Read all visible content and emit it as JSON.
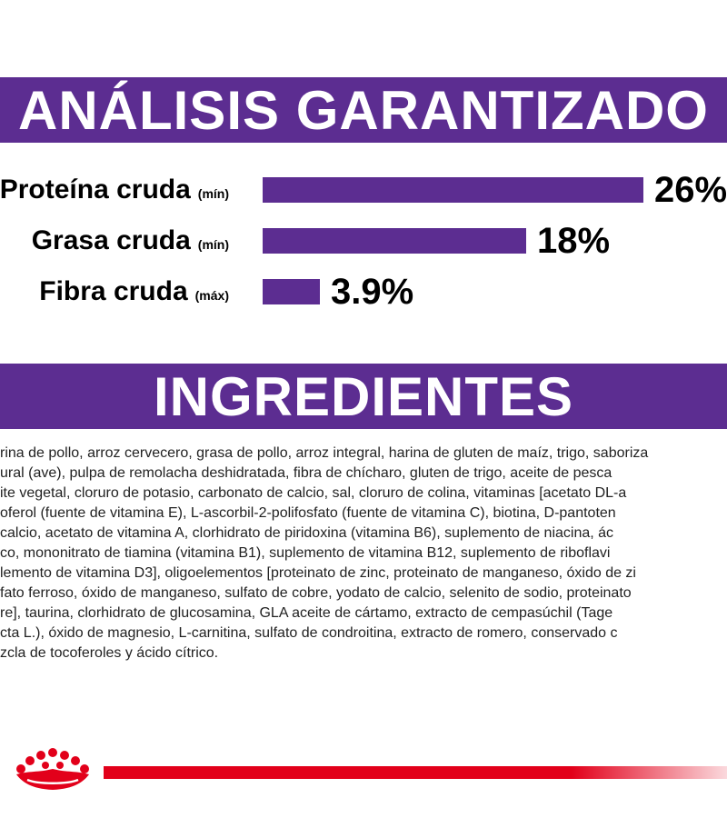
{
  "colors": {
    "brand_purple": "#5c2d91",
    "brand_red": "#e2001a"
  },
  "analysis": {
    "title": "ANÁLISIS GARANTIZADO",
    "rows": [
      {
        "label": "Proteína cruda",
        "qualifier": "(mín)",
        "value": "26%",
        "percent": 26
      },
      {
        "label": "Grasa cruda",
        "qualifier": "(mín)",
        "value": "18%",
        "percent": 18
      },
      {
        "label": "Fibra cruda",
        "qualifier": "(máx)",
        "value": "3.9%",
        "percent": 3.9
      }
    ]
  },
  "ingredients": {
    "title": "INGREDIENTES",
    "lines": [
      "rina de pollo, arroz cervecero, grasa de pollo, arroz integral, harina de gluten de maíz, trigo, saboriza",
      "ural (ave), pulpa de remolacha deshidratada, fibra de chícharo, gluten de trigo, aceite de pesca",
      "ite vegetal, cloruro de potasio, carbonato de calcio, sal, cloruro de colina, vitaminas [acetato DL-a",
      "oferol (fuente de vitamina E), L-ascorbil-2-polifosfato (fuente de vitamina C), biotina, D-pantoten",
      "calcio, acetato de vitamina A, clorhidrato de piridoxina (vitamina B6), suplemento de niacina, ác",
      "co, mononitrato de tiamina (vitamina B1), suplemento de vitamina B12, suplemento de riboflavi",
      "lemento de vitamina D3], oligoelementos [proteinato de zinc, proteinato de manganeso, óxido de zi",
      "fato ferroso, óxido de manganeso, sulfato de cobre, yodato de calcio, selenito de sodio, proteinato",
      "re], taurina, clorhidrato de glucosamina, GLA aceite de cártamo, extracto de cempasúchil (Tage",
      "cta L.), óxido de magnesio, L-carnitina, sulfato de condroitina, extracto de romero, conservado c",
      "zcla de tocoferoles y ácido cítrico."
    ]
  },
  "footer": {
    "logo_icon": "crown-icon"
  }
}
